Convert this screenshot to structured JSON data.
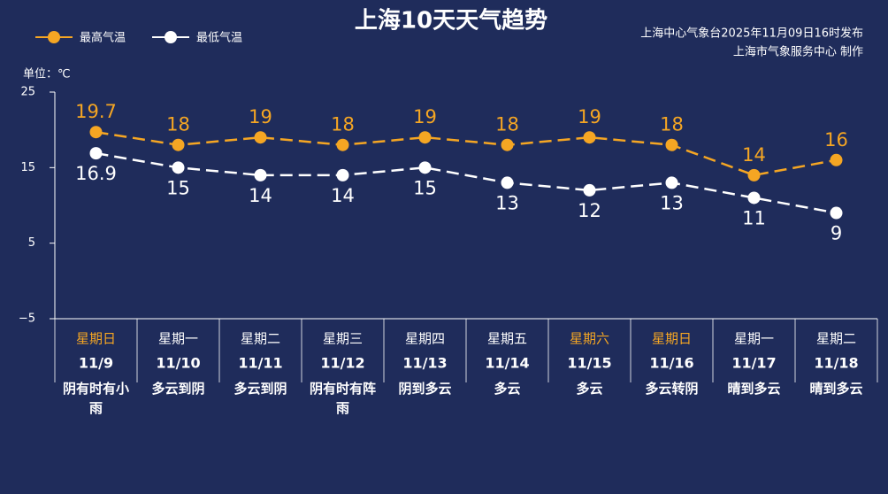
{
  "chart_data": {
    "type": "line",
    "title": "上海10天天气趋势",
    "source": [
      "上海中心气象台2025年11月09日16时发布",
      "上海市气象服务中心 制作"
    ],
    "unit_label": "单位：℃",
    "categories": [
      "11/9",
      "11/10",
      "11/11",
      "11/12",
      "11/13",
      "11/14",
      "11/15",
      "11/16",
      "11/17",
      "11/18"
    ],
    "weekdays": [
      "星期日",
      "星期一",
      "星期二",
      "星期三",
      "星期四",
      "星期五",
      "星期六",
      "星期日",
      "星期一",
      "星期二"
    ],
    "weekday_highlight": [
      true,
      false,
      false,
      false,
      false,
      false,
      true,
      true,
      false,
      false
    ],
    "highlight_color": "#f5a623",
    "weather": [
      "阴有时有小雨",
      "多云到阴",
      "多云到阴",
      "阴有时有阵雨",
      "阴到多云",
      "多云",
      "多云",
      "多云转阴",
      "晴到多云",
      "晴到多云"
    ],
    "series": [
      {
        "name": "最高气温",
        "color": "#f5a623",
        "label_position": "above",
        "values": [
          19.7,
          18,
          19,
          18,
          19,
          18,
          19,
          18,
          14,
          16
        ]
      },
      {
        "name": "最低气温",
        "color": "#ffffff",
        "label_position": "below",
        "values": [
          16.9,
          15,
          14,
          14,
          15,
          13,
          12,
          13,
          11,
          9
        ]
      }
    ],
    "ylim": [
      -5,
      25
    ],
    "yticks": [
      25,
      15,
      5,
      {
        "value": -5,
        "label": "−5"
      }
    ],
    "dashed": true
  }
}
